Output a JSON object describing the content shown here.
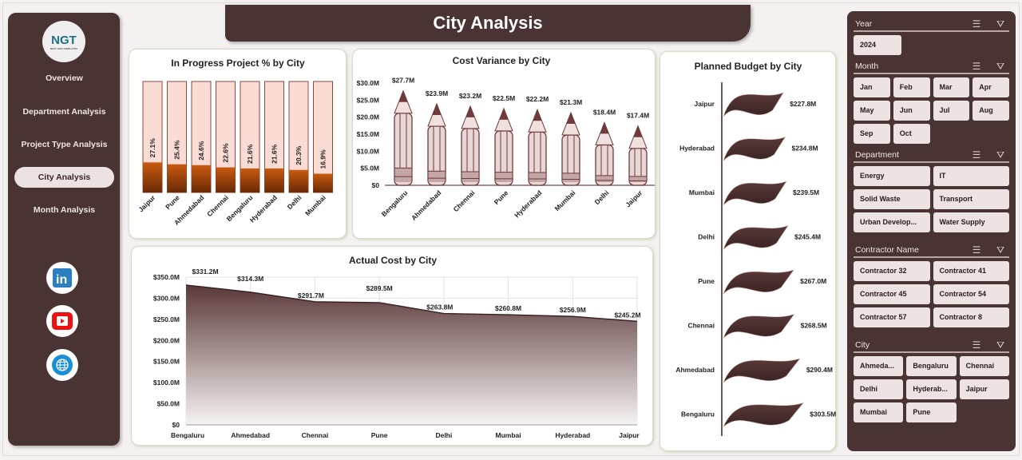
{
  "header": {
    "title": "City Analysis"
  },
  "sidebar": {
    "logo": "NGT",
    "logo_sub": "NEXT GEN TEMPLATES",
    "items": [
      {
        "label": "Overview"
      },
      {
        "label": "Department Analysis"
      },
      {
        "label": "Project Type Analysis"
      },
      {
        "label": "City Analysis",
        "active": true
      },
      {
        "label": "Month Analysis"
      }
    ],
    "social": [
      "linkedin-icon",
      "youtube-icon",
      "globe-icon"
    ]
  },
  "colors": {
    "primary": "#4a3333",
    "panel_button": "#ede3e2",
    "bar_light": "#fbdcd5",
    "bar_dark": "#b8520e",
    "pencil": "#e8d6d6",
    "pencil_tip": "#6e3a3a"
  },
  "filters": {
    "year": {
      "label": "Year",
      "options": [
        "2024"
      ]
    },
    "month": {
      "label": "Month",
      "options": [
        "Jan",
        "Feb",
        "Mar",
        "Apr",
        "May",
        "Jun",
        "Jul",
        "Aug",
        "Sep",
        "Oct"
      ]
    },
    "department": {
      "label": "Department",
      "options": [
        "Energy",
        "IT",
        "Solid Waste",
        "Transport",
        "Urban Develop...",
        "Water Supply"
      ]
    },
    "contractor": {
      "label": "Contractor Name",
      "options": [
        "Contractor 32",
        "Contractor 41",
        "Contractor 45",
        "Contractor 54",
        "Contractor 57",
        "Contractor 8"
      ]
    },
    "city": {
      "label": "City",
      "options": [
        "Ahmeda...",
        "Bengaluru",
        "Chennai",
        "Delhi",
        "Hyderab...",
        "Jaipur",
        "Mumbai",
        "Pune"
      ]
    }
  },
  "chart_data": [
    {
      "id": "progress",
      "type": "bar",
      "title": "In Progress Project % by City",
      "categories": [
        "Jaipur",
        "Pune",
        "Ahmedabad",
        "Chennai",
        "Bengaluru",
        "Hyderabad",
        "Delhi",
        "Mumbai"
      ],
      "values": [
        27.1,
        25.4,
        24.6,
        22.6,
        21.6,
        21.6,
        20.3,
        16.9
      ],
      "labels": [
        "27.1%",
        "25.4%",
        "24.6%",
        "22.6%",
        "21.6%",
        "21.6%",
        "20.3%",
        "16.9%"
      ],
      "ylim": [
        0,
        100
      ]
    },
    {
      "id": "variance",
      "type": "bar",
      "title": "Cost Variance by City",
      "categories": [
        "Bengaluru",
        "Ahmedabad",
        "Chennai",
        "Pune",
        "Hyderabad",
        "Mumbai",
        "Delhi",
        "Jaipur"
      ],
      "values": [
        27.7,
        23.9,
        23.2,
        22.5,
        22.2,
        21.3,
        18.4,
        17.4
      ],
      "labels": [
        "$27.7M",
        "$23.9M",
        "$23.2M",
        "$22.5M",
        "$22.2M",
        "$21.3M",
        "$18.4M",
        "$17.4M"
      ],
      "yticks": [
        "$0",
        "$5.0M",
        "$10.0M",
        "$15.0M",
        "$20.0M",
        "$25.0M",
        "$30.0M"
      ],
      "ylim": [
        0,
        30
      ]
    },
    {
      "id": "budget",
      "type": "bar",
      "title": "Planned Budget by City",
      "categories": [
        "Jaipur",
        "Hyderabad",
        "Mumbai",
        "Delhi",
        "Pune",
        "Chennai",
        "Ahmedabad",
        "Bengaluru"
      ],
      "values": [
        227.8,
        234.8,
        239.5,
        245.4,
        267.0,
        268.5,
        290.4,
        303.5
      ],
      "labels": [
        "$227.8M",
        "$234.8M",
        "$239.5M",
        "$245.4M",
        "$267.0M",
        "$268.5M",
        "$290.4M",
        "$303.5M"
      ]
    },
    {
      "id": "actual",
      "type": "area",
      "title": "Actual Cost by City",
      "categories": [
        "Bengaluru",
        "Ahmedabad",
        "Chennai",
        "Pune",
        "Delhi",
        "Mumbai",
        "Hyderabad",
        "Jaipur"
      ],
      "values": [
        331.2,
        314.3,
        291.7,
        289.5,
        263.8,
        260.8,
        256.9,
        245.2
      ],
      "labels": [
        "$331.2M",
        "$314.3M",
        "$291.7M",
        "$289.5M",
        "$263.8M",
        "$260.8M",
        "$256.9M",
        "$245.2M"
      ],
      "yticks": [
        "$0",
        "$50.0M",
        "$100.0M",
        "$150.0M",
        "$200.0M",
        "$250.0M",
        "$300.0M",
        "$350.0M"
      ],
      "ylim": [
        0,
        350
      ],
      "grid": true
    }
  ]
}
